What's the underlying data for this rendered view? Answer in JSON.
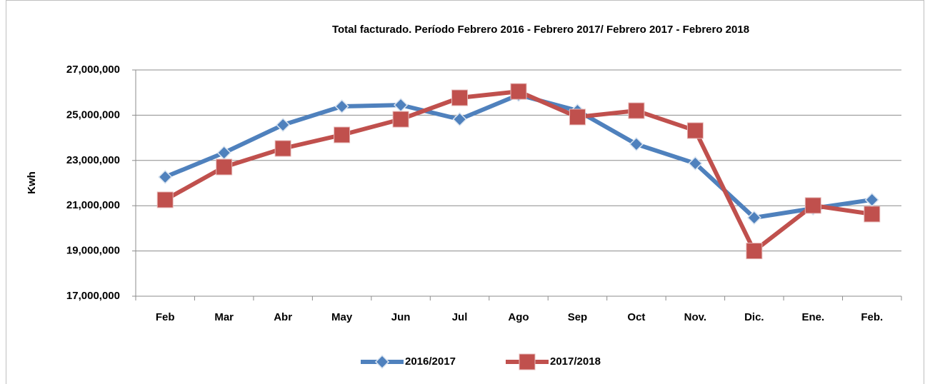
{
  "chart_data": {
    "type": "line",
    "title": "Total facturado. Período Febrero 2016 - Febrero 2017/ Febrero  2017 - Febrero 2018",
    "y_label": "Kwh",
    "categories": [
      "Feb",
      "Mar",
      "Abr",
      "May",
      "Jun",
      "Jul",
      "Ago",
      "Sep",
      "Oct",
      "Nov.",
      "Dic.",
      "Ene.",
      "Feb."
    ],
    "series": [
      {
        "name": "2016/2017",
        "color": "#4f81bd",
        "marker": "diamond",
        "values": [
          22270000,
          23340000,
          24570000,
          25390000,
          25450000,
          24820000,
          25900000,
          25200000,
          23720000,
          22870000,
          20470000,
          20880000,
          21260000
        ]
      },
      {
        "name": "2017/2018",
        "color": "#c0504d",
        "marker": "square",
        "values": [
          21260000,
          22710000,
          23530000,
          24130000,
          24820000,
          25770000,
          26050000,
          24920000,
          25200000,
          24320000,
          19000000,
          21010000,
          20630000
        ]
      }
    ],
    "ylim": [
      17000000,
      27000000
    ],
    "yticks": [
      {
        "value": 17000000,
        "label": "17,000,000"
      },
      {
        "value": 19000000,
        "label": "19,000,000"
      },
      {
        "value": 21000000,
        "label": "21,000,000"
      },
      {
        "value": 23000000,
        "label": "23,000,000"
      },
      {
        "value": 25000000,
        "label": "25,000,000"
      },
      {
        "value": 27000000,
        "label": "27,000,000"
      }
    ],
    "grid": true,
    "legend": "bottom"
  }
}
